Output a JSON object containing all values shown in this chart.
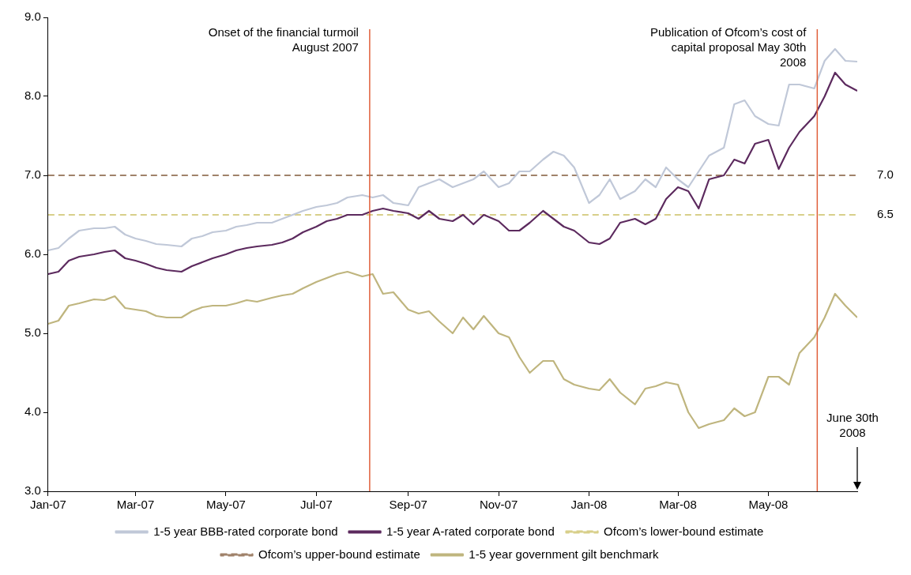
{
  "chart_data": {
    "type": "line",
    "xlim": [
      "2007-01-01",
      "2008-06-30"
    ],
    "ylim": [
      3,
      9
    ],
    "xticks": [
      {
        "value": "2007-01-01",
        "label": "Jan-07"
      },
      {
        "value": "2007-03-01",
        "label": "Mar-07"
      },
      {
        "value": "2007-05-01",
        "label": "May-07"
      },
      {
        "value": "2007-07-01",
        "label": "Jul-07"
      },
      {
        "value": "2007-09-01",
        "label": "Sep-07"
      },
      {
        "value": "2007-11-01",
        "label": "Nov-07"
      },
      {
        "value": "2008-01-01",
        "label": "Jan-08"
      },
      {
        "value": "2008-03-01",
        "label": "Mar-08"
      },
      {
        "value": "2008-05-01",
        "label": "May-08"
      }
    ],
    "yticks": [
      {
        "value": 3,
        "label": "3.0"
      },
      {
        "value": 4,
        "label": "4.0"
      },
      {
        "value": 5,
        "label": "5.0"
      },
      {
        "value": 6,
        "label": "6.0"
      },
      {
        "value": 7,
        "label": "7.0"
      },
      {
        "value": 8,
        "label": "8.0"
      },
      {
        "value": 9,
        "label": "9.0"
      }
    ],
    "grid": false,
    "legend": "bottom",
    "marker": "none",
    "x": [
      "2007-01-01",
      "2007-01-08",
      "2007-01-15",
      "2007-01-22",
      "2007-02-01",
      "2007-02-08",
      "2007-02-15",
      "2007-02-22",
      "2007-03-01",
      "2007-03-08",
      "2007-03-15",
      "2007-03-22",
      "2007-04-01",
      "2007-04-08",
      "2007-04-15",
      "2007-04-22",
      "2007-05-01",
      "2007-05-08",
      "2007-05-15",
      "2007-05-22",
      "2007-06-01",
      "2007-06-08",
      "2007-06-15",
      "2007-06-22",
      "2007-07-01",
      "2007-07-08",
      "2007-07-15",
      "2007-07-22",
      "2007-08-01",
      "2007-08-08",
      "2007-08-15",
      "2007-08-22",
      "2007-09-01",
      "2007-09-08",
      "2007-09-15",
      "2007-09-22",
      "2007-10-01",
      "2007-10-08",
      "2007-10-15",
      "2007-10-22",
      "2007-11-01",
      "2007-11-08",
      "2007-11-15",
      "2007-11-22",
      "2007-12-01",
      "2007-12-08",
      "2007-12-15",
      "2007-12-22",
      "2008-01-01",
      "2008-01-08",
      "2008-01-15",
      "2008-01-22",
      "2008-02-01",
      "2008-02-08",
      "2008-02-15",
      "2008-02-22",
      "2008-03-01",
      "2008-03-08",
      "2008-03-15",
      "2008-03-22",
      "2008-04-01",
      "2008-04-08",
      "2008-04-15",
      "2008-04-22",
      "2008-05-01",
      "2008-05-08",
      "2008-05-15",
      "2008-05-22",
      "2008-06-01",
      "2008-06-08",
      "2008-06-15",
      "2008-06-22",
      "2008-06-30"
    ],
    "series": [
      {
        "name": "1-5 year BBB-rated corporate bond",
        "color": "#c0c8d8",
        "line_style": "solid",
        "values": [
          6.05,
          6.08,
          6.2,
          6.3,
          6.33,
          6.33,
          6.35,
          6.25,
          6.2,
          6.17,
          6.13,
          6.12,
          6.1,
          6.2,
          6.23,
          6.28,
          6.3,
          6.35,
          6.37,
          6.4,
          6.4,
          6.45,
          6.5,
          6.55,
          6.6,
          6.62,
          6.65,
          6.72,
          6.75,
          6.72,
          6.75,
          6.65,
          6.62,
          6.85,
          6.9,
          6.95,
          6.85,
          6.9,
          6.95,
          7.05,
          6.85,
          6.9,
          7.05,
          7.05,
          7.2,
          7.3,
          7.25,
          7.1,
          6.65,
          6.75,
          6.95,
          6.7,
          6.8,
          6.95,
          6.85,
          7.1,
          6.95,
          6.85,
          7.05,
          7.25,
          7.35,
          7.9,
          7.95,
          7.75,
          7.65,
          7.63,
          8.15,
          8.15,
          8.1,
          8.45,
          8.6,
          8.45,
          8.44
        ]
      },
      {
        "name": "1-5 year A-rated corporate bond",
        "color": "#5c2a5e",
        "line_style": "solid",
        "values": [
          5.75,
          5.78,
          5.92,
          5.97,
          6.0,
          6.03,
          6.05,
          5.95,
          5.92,
          5.88,
          5.83,
          5.8,
          5.78,
          5.85,
          5.9,
          5.95,
          6.0,
          6.05,
          6.08,
          6.1,
          6.12,
          6.15,
          6.2,
          6.28,
          6.35,
          6.42,
          6.45,
          6.5,
          6.5,
          6.55,
          6.58,
          6.55,
          6.52,
          6.45,
          6.55,
          6.45,
          6.42,
          6.5,
          6.38,
          6.5,
          6.42,
          6.3,
          6.3,
          6.4,
          6.55,
          6.45,
          6.35,
          6.3,
          6.15,
          6.13,
          6.2,
          6.4,
          6.45,
          6.38,
          6.45,
          6.7,
          6.85,
          6.8,
          6.58,
          6.95,
          7.0,
          7.2,
          7.15,
          7.4,
          7.45,
          7.08,
          7.35,
          7.55,
          7.75,
          8.0,
          8.3,
          8.15,
          8.07
        ]
      },
      {
        "name": "Ofcom’s lower-bound estimate",
        "color": "#d8cf8a",
        "line_style": "dashed",
        "x": [
          "2007-01-01",
          "2008-06-30"
        ],
        "values": [
          6.5,
          6.5
        ]
      },
      {
        "name": "Ofcom’s upper-bound estimate",
        "color": "#a0826a",
        "line_style": "dashed",
        "x": [
          "2007-01-01",
          "2008-06-30"
        ],
        "values": [
          7,
          7
        ]
      },
      {
        "name": "1-5 year government gilt benchmark",
        "color": "#bfb57e",
        "line_style": "solid",
        "values": [
          5.12,
          5.16,
          5.35,
          5.38,
          5.43,
          5.42,
          5.47,
          5.32,
          5.3,
          5.28,
          5.22,
          5.2,
          5.2,
          5.28,
          5.33,
          5.35,
          5.35,
          5.38,
          5.42,
          5.4,
          5.45,
          5.48,
          5.5,
          5.57,
          5.65,
          5.7,
          5.75,
          5.78,
          5.72,
          5.75,
          5.5,
          5.52,
          5.3,
          5.25,
          5.28,
          5.15,
          5.0,
          5.2,
          5.05,
          5.22,
          5.0,
          4.95,
          4.7,
          4.5,
          4.65,
          4.65,
          4.42,
          4.35,
          4.3,
          4.28,
          4.42,
          4.25,
          4.1,
          4.3,
          4.33,
          4.38,
          4.35,
          4.0,
          3.8,
          3.85,
          3.9,
          4.05,
          3.95,
          4.0,
          4.45,
          4.45,
          4.35,
          4.75,
          4.95,
          5.2,
          5.5,
          5.35,
          5.2
        ]
      }
    ],
    "ref_lines": [
      {
        "axis": "x",
        "value": "2007-08-06",
        "label": "Onset of the financial turmoil August 2007",
        "color": "#e0603a"
      },
      {
        "axis": "x",
        "value": "2008-06-03",
        "label": "Publication of Ofcom’s cost of capital proposal May 30th 2008",
        "color": "#e0603a"
      }
    ],
    "annotations": [
      {
        "text": "7.0",
        "x": "2008-06-30",
        "y": 7
      },
      {
        "text": "6.5",
        "x": "2008-06-30",
        "y": 6.5
      },
      "June 30th 2008"
    ]
  }
}
